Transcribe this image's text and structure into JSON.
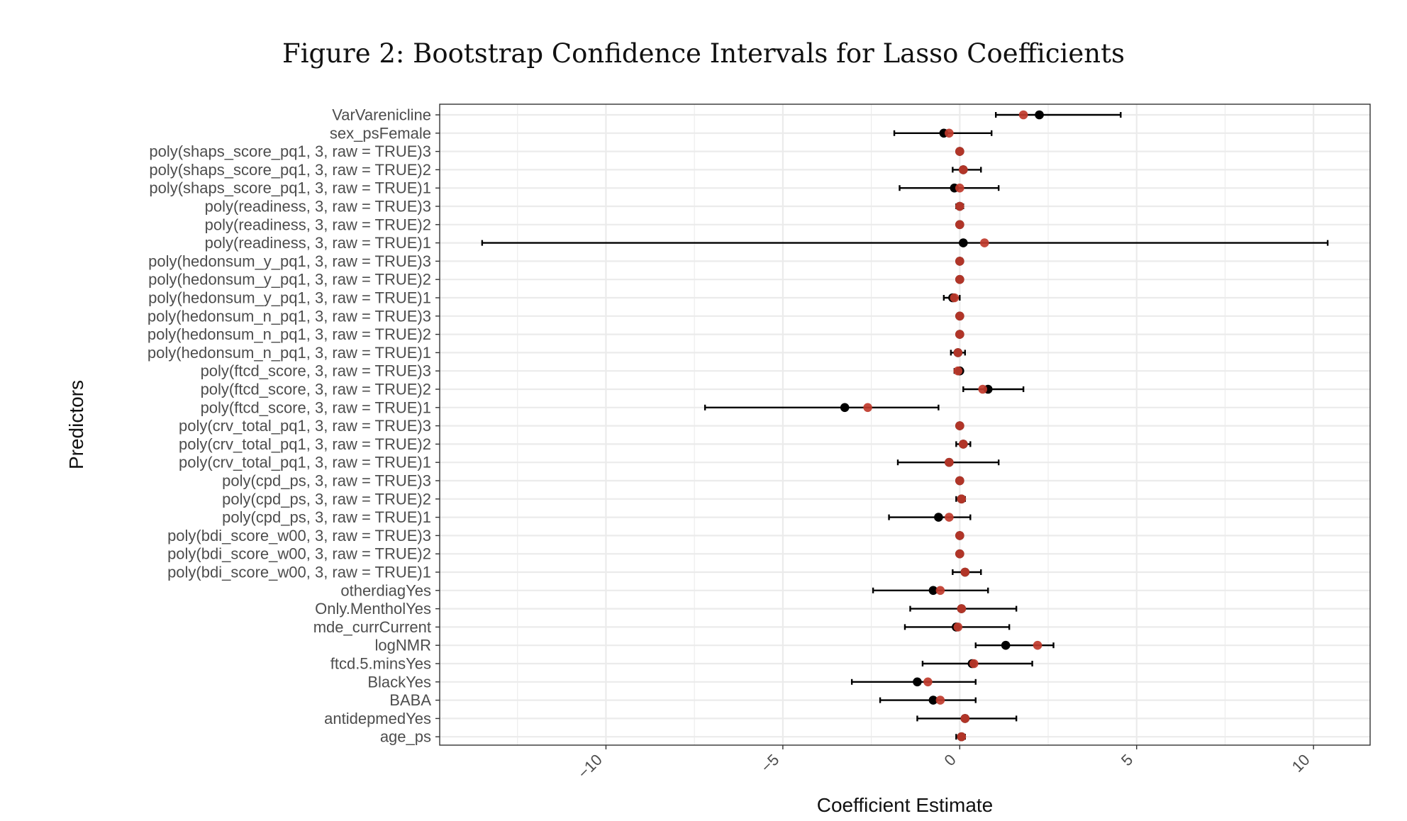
{
  "chart_data": {
    "type": "scatter",
    "title": "Figure 2: Bootstrap Confidence Intervals for Lasso Coefficients",
    "xlabel": "Coefficient Estimate",
    "ylabel": "Predictors",
    "xlim": [
      -14.7,
      11.6
    ],
    "xticks": [
      -10,
      -5,
      0,
      5,
      10
    ],
    "xtick_labels": [
      "−10",
      "−5",
      "0",
      "5",
      "10"
    ],
    "grid": true,
    "legend": "none",
    "colors": {
      "point_estimate": "#000000",
      "bootstrap_mean": "#c0392b",
      "interval": "#000000"
    },
    "predictors": [
      {
        "name": "VarVarenicline",
        "estimate": 2.25,
        "mean": 1.8,
        "lower": 1.02,
        "upper": 4.55
      },
      {
        "name": "sex_psFemale",
        "estimate": -0.45,
        "mean": -0.3,
        "lower": -1.85,
        "upper": 0.9
      },
      {
        "name": "poly(shaps_score_pq1, 3, raw = TRUE)3",
        "estimate": 0.0,
        "mean": 0.0,
        "lower": -0.05,
        "upper": 0.05
      },
      {
        "name": "poly(shaps_score_pq1, 3, raw = TRUE)2",
        "estimate": 0.1,
        "mean": 0.1,
        "lower": -0.2,
        "upper": 0.6
      },
      {
        "name": "poly(shaps_score_pq1, 3, raw = TRUE)1",
        "estimate": -0.15,
        "mean": 0.0,
        "lower": -1.7,
        "upper": 1.1
      },
      {
        "name": "poly(readiness, 3, raw = TRUE)3",
        "estimate": 0.0,
        "mean": 0.0,
        "lower": -0.1,
        "upper": 0.1
      },
      {
        "name": "poly(readiness, 3, raw = TRUE)2",
        "estimate": 0.0,
        "mean": 0.0,
        "lower": -0.05,
        "upper": 0.05
      },
      {
        "name": "poly(readiness, 3, raw = TRUE)1",
        "estimate": 0.1,
        "mean": 0.7,
        "lower": -13.5,
        "upper": 10.4
      },
      {
        "name": "poly(hedonsum_y_pq1, 3, raw = TRUE)3",
        "estimate": 0.0,
        "mean": 0.0,
        "lower": -0.05,
        "upper": 0.05
      },
      {
        "name": "poly(hedonsum_y_pq1, 3, raw = TRUE)2",
        "estimate": 0.0,
        "mean": 0.0,
        "lower": -0.05,
        "upper": 0.05
      },
      {
        "name": "poly(hedonsum_y_pq1, 3, raw = TRUE)1",
        "estimate": -0.2,
        "mean": -0.15,
        "lower": -0.45,
        "upper": 0.0
      },
      {
        "name": "poly(hedonsum_n_pq1, 3, raw = TRUE)3",
        "estimate": 0.0,
        "mean": 0.0,
        "lower": -0.05,
        "upper": 0.05
      },
      {
        "name": "poly(hedonsum_n_pq1, 3, raw = TRUE)2",
        "estimate": 0.0,
        "mean": 0.0,
        "lower": -0.05,
        "upper": 0.05
      },
      {
        "name": "poly(hedonsum_n_pq1, 3, raw = TRUE)1",
        "estimate": -0.05,
        "mean": -0.05,
        "lower": -0.25,
        "upper": 0.15
      },
      {
        "name": "poly(ftcd_score, 3, raw = TRUE)3",
        "estimate": 0.0,
        "mean": -0.05,
        "lower": -0.15,
        "upper": 0.05
      },
      {
        "name": "poly(ftcd_score, 3, raw = TRUE)2",
        "estimate": 0.8,
        "mean": 0.65,
        "lower": 0.1,
        "upper": 1.8
      },
      {
        "name": "poly(ftcd_score, 3, raw = TRUE)1",
        "estimate": -3.25,
        "mean": -2.6,
        "lower": -7.2,
        "upper": -0.6
      },
      {
        "name": "poly(crv_total_pq1, 3, raw = TRUE)3",
        "estimate": 0.0,
        "mean": 0.0,
        "lower": -0.05,
        "upper": 0.05
      },
      {
        "name": "poly(crv_total_pq1, 3, raw = TRUE)2",
        "estimate": 0.1,
        "mean": 0.1,
        "lower": -0.1,
        "upper": 0.3
      },
      {
        "name": "poly(crv_total_pq1, 3, raw = TRUE)1",
        "estimate": -0.3,
        "mean": -0.3,
        "lower": -1.75,
        "upper": 1.1
      },
      {
        "name": "poly(cpd_ps, 3, raw = TRUE)3",
        "estimate": 0.0,
        "mean": 0.0,
        "lower": -0.05,
        "upper": 0.05
      },
      {
        "name": "poly(cpd_ps, 3, raw = TRUE)2",
        "estimate": 0.05,
        "mean": 0.05,
        "lower": -0.1,
        "upper": 0.15
      },
      {
        "name": "poly(cpd_ps, 3, raw = TRUE)1",
        "estimate": -0.6,
        "mean": -0.3,
        "lower": -2.0,
        "upper": 0.3
      },
      {
        "name": "poly(bdi_score_w00, 3, raw = TRUE)3",
        "estimate": 0.0,
        "mean": 0.0,
        "lower": -0.05,
        "upper": 0.05
      },
      {
        "name": "poly(bdi_score_w00, 3, raw = TRUE)2",
        "estimate": 0.0,
        "mean": 0.0,
        "lower": -0.05,
        "upper": 0.05
      },
      {
        "name": "poly(bdi_score_w00, 3, raw = TRUE)1",
        "estimate": 0.15,
        "mean": 0.15,
        "lower": -0.2,
        "upper": 0.6
      },
      {
        "name": "otherdiagYes",
        "estimate": -0.75,
        "mean": -0.55,
        "lower": -2.45,
        "upper": 0.8
      },
      {
        "name": "Only.MentholYes",
        "estimate": 0.05,
        "mean": 0.05,
        "lower": -1.4,
        "upper": 1.6
      },
      {
        "name": "mde_currCurrent",
        "estimate": -0.1,
        "mean": -0.05,
        "lower": -1.55,
        "upper": 1.4
      },
      {
        "name": "logNMR",
        "estimate": 1.3,
        "mean": 2.2,
        "lower": 0.45,
        "upper": 2.65
      },
      {
        "name": "ftcd.5.minsYes",
        "estimate": 0.35,
        "mean": 0.4,
        "lower": -1.05,
        "upper": 2.05
      },
      {
        "name": "BlackYes",
        "estimate": -1.2,
        "mean": -0.9,
        "lower": -3.05,
        "upper": 0.45
      },
      {
        "name": "BABA",
        "estimate": -0.75,
        "mean": -0.55,
        "lower": -2.25,
        "upper": 0.45
      },
      {
        "name": "antidepmedYes",
        "estimate": 0.15,
        "mean": 0.15,
        "lower": -1.2,
        "upper": 1.6
      },
      {
        "name": "age_ps",
        "estimate": 0.05,
        "mean": 0.05,
        "lower": -0.1,
        "upper": 0.15
      }
    ]
  }
}
